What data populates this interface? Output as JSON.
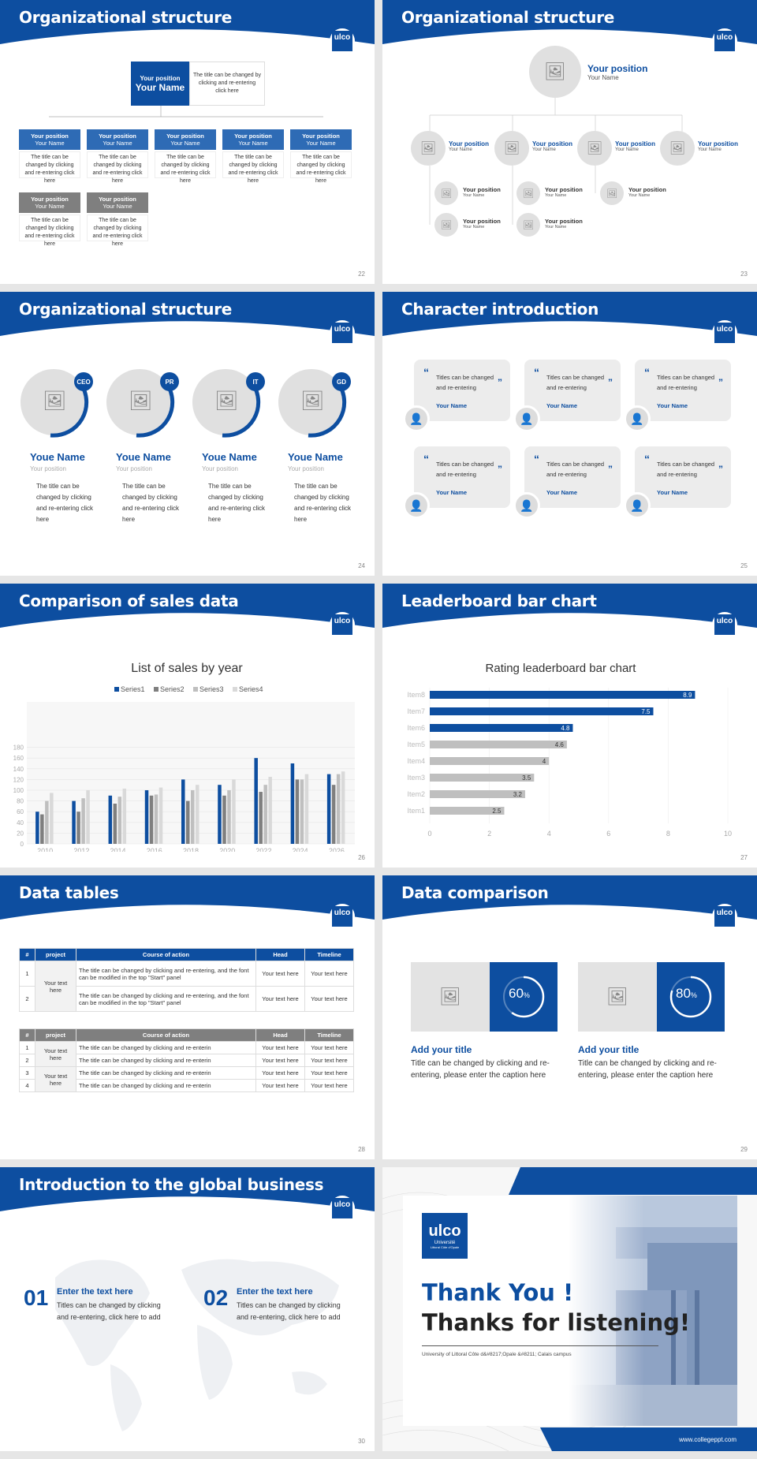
{
  "slides": {
    "s22": {
      "title": "Organizational structure",
      "page": "22",
      "top": {
        "position": "Your position",
        "name": "Your Name",
        "desc": "The title can be changed by clicking and re-entering click here"
      },
      "row_blue": [
        {
          "position": "Your position",
          "name": "Your Name",
          "desc": "The title can be changed by clicking and re-entering click here"
        },
        {
          "position": "Your position",
          "name": "Your Name",
          "desc": "The title can be changed by clicking and re-entering click here"
        },
        {
          "position": "Your position",
          "name": "Your Name",
          "desc": "The title can be changed by clicking and re-entering click here"
        },
        {
          "position": "Your position",
          "name": "Your Name",
          "desc": "The title can be changed by clicking and re-entering click here"
        },
        {
          "position": "Your position",
          "name": "Your Name",
          "desc": "The title can be changed by clicking and re-entering click here"
        }
      ],
      "row_gray": [
        {
          "position": "Your position",
          "name": "Your Name",
          "desc": "The title can be changed by clicking and re-entering click here"
        },
        {
          "position": "Your position",
          "name": "Your Name",
          "desc": "The title can be changed by clicking and re-entering click here"
        }
      ]
    },
    "s23": {
      "title": "Organizational structure",
      "page": "23",
      "top": {
        "position": "Your position",
        "name": "Your Name"
      },
      "level2": [
        {
          "position": "Your position",
          "name": "Your Name"
        },
        {
          "position": "Your position",
          "name": "Your Name"
        },
        {
          "position": "Your position",
          "name": "Your Name"
        },
        {
          "position": "Your position",
          "name": "Your Name"
        }
      ],
      "level3": [
        {
          "position": "Your position",
          "name": "Your Name"
        },
        {
          "position": "Your position",
          "name": "Your Name"
        },
        {
          "position": "Your position",
          "name": "Your Name"
        },
        {
          "position": "Your position",
          "name": "Your Name"
        },
        {
          "position": "Your position",
          "name": "Your Name"
        }
      ]
    },
    "s24": {
      "title": "Organizational structure",
      "page": "24",
      "people": [
        {
          "badge": "CEO",
          "name": "Youe Name",
          "position": "Your position",
          "desc": "The title can be changed by clicking and re-entering click here"
        },
        {
          "badge": "PR",
          "name": "Youe Name",
          "position": "Your position",
          "desc": "The title can be changed by clicking and re-entering click here"
        },
        {
          "badge": "IT",
          "name": "Youe Name",
          "position": "Your position",
          "desc": "The title can be changed by clicking and re-entering click here"
        },
        {
          "badge": "GD",
          "name": "Youe Name",
          "position": "Your position",
          "desc": "The title can be changed by clicking and re-entering click here"
        }
      ]
    },
    "s25": {
      "title": "Character introduction",
      "page": "25",
      "cards": [
        {
          "text": "Titles can be changed and re-entering",
          "name": "Your Name"
        },
        {
          "text": "Titles can be changed and re-entering",
          "name": "Your Name"
        },
        {
          "text": "Titles can be changed and re-entering",
          "name": "Your Name"
        },
        {
          "text": "Titles can be changed and re-entering",
          "name": "Your Name"
        },
        {
          "text": "Titles can be changed and re-entering",
          "name": "Your Name"
        },
        {
          "text": "Titles can be changed and re-entering",
          "name": "Your Name"
        }
      ]
    },
    "s26": {
      "title": "Comparison of sales data",
      "page": "26"
    },
    "s27": {
      "title": "Leaderboard bar chart",
      "page": "27"
    },
    "s28": {
      "title": "Data tables",
      "page": "28",
      "t1": {
        "headers": [
          "#",
          "project",
          "Course of action",
          "Head",
          "Timeline"
        ],
        "project": "Your text here",
        "rows": [
          {
            "n": "1",
            "action": "The title can be changed by clicking and re-entering, and the font can be modified in the top \"Start\" panel",
            "head": "Your text here",
            "time": "Your text here"
          },
          {
            "n": "2",
            "action": "The title can be changed by clicking and re-entering, and the font can be modified in the top \"Start\" panel",
            "head": "Your text here",
            "time": "Your text here"
          }
        ]
      },
      "t2": {
        "headers": [
          "#",
          "project",
          "Course of action",
          "Head",
          "Timeline"
        ],
        "rows": [
          {
            "n": "1",
            "project": "Your text here",
            "action": "The title can be changed by clicking and re-enterin",
            "head": "Your text here",
            "time": "Your text here"
          },
          {
            "n": "2",
            "project": "",
            "action": "The title can be changed by clicking and re-enterin",
            "head": "Your text here",
            "time": "Your text here"
          },
          {
            "n": "3",
            "project": "Your text here",
            "action": "The title can be changed by clicking and re-enterin",
            "head": "Your text here",
            "time": "Your text here"
          },
          {
            "n": "4",
            "project": "",
            "action": "The title can be changed by clicking and re-enterin",
            "head": "Your text here",
            "time": "Your text here"
          }
        ]
      }
    },
    "s29": {
      "title": "Data comparison",
      "page": "29",
      "items": [
        {
          "pct": "60",
          "title": "Add your title",
          "desc": "Title can be changed by clicking and re-entering, please enter the caption here"
        },
        {
          "pct": "80",
          "title": "Add your title",
          "desc": "Title can be changed by clicking and re-entering, please enter the caption here"
        }
      ]
    },
    "s30": {
      "title": "Introduction to the global business",
      "page": "30",
      "items": [
        {
          "num": "01",
          "head": "Enter the text here",
          "desc": "Titles can be changed by clicking and re-entering, click here to add"
        },
        {
          "num": "02",
          "head": "Enter the text here",
          "desc": "Titles can be changed by clicking and re-entering, click here to add"
        }
      ]
    },
    "s31": {
      "thank": "Thank You !",
      "listen": "Thanks for listening!",
      "campus": "University of Littoral Côte d&#8217;Opale &#8211; Calais campus",
      "url": "www.collegeppt.com",
      "logo_text": "ulco",
      "logo_sub": "Université",
      "logo_sub2": "Littoral Côte d'Opale"
    }
  },
  "logo": {
    "text": "ulco",
    "sub": "Université"
  },
  "colors": {
    "brand": "#0d4ea0",
    "gray": "#7f7f7f"
  },
  "chart_data": [
    {
      "type": "bar",
      "title": "List of sales by year",
      "categories": [
        "2010",
        "2012",
        "2014",
        "2016",
        "2018",
        "2020",
        "2022",
        "2024",
        "2026"
      ],
      "series": [
        {
          "name": "Series1",
          "values": [
            60,
            80,
            90,
            100,
            120,
            110,
            160,
            150,
            130
          ]
        },
        {
          "name": "Series2",
          "values": [
            55,
            60,
            75,
            90,
            80,
            90,
            97,
            120,
            110
          ]
        },
        {
          "name": "Series3",
          "values": [
            80,
            85,
            88,
            92,
            100,
            100,
            110,
            120,
            130
          ]
        },
        {
          "name": "Series4",
          "values": [
            95,
            100,
            103,
            105,
            110,
            120,
            125,
            130,
            135
          ]
        }
      ],
      "ylim": [
        0,
        180
      ],
      "yticks": [
        "0",
        "20",
        "40",
        "60",
        "80",
        "100",
        "120",
        "140",
        "160",
        "180"
      ],
      "legend": "top"
    },
    {
      "type": "bar",
      "title": "Rating leaderboard bar chart",
      "orientation": "horizontal",
      "categories": [
        "Item8",
        "Item7",
        "Item6",
        "Item5",
        "Item4",
        "Item3",
        "Item2",
        "Item1"
      ],
      "values": [
        8.9,
        7.5,
        4.8,
        4.6,
        4,
        3.5,
        3.2,
        2.5
      ],
      "xlim": [
        0,
        10
      ],
      "xticks": [
        "0",
        "2",
        "4",
        "6",
        "8",
        "10"
      ]
    }
  ]
}
